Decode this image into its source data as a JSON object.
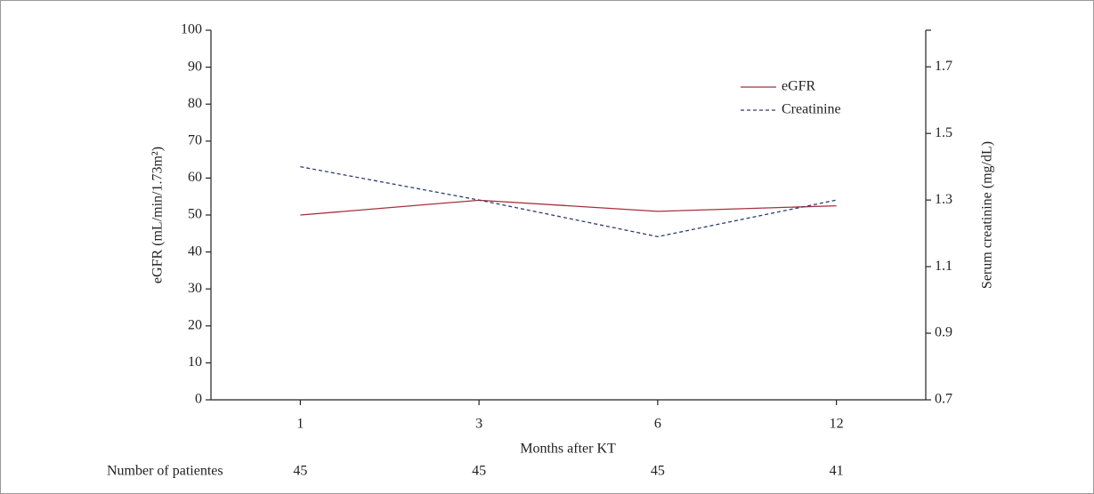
{
  "chart_data": {
    "type": "line",
    "x_label": "Months after KT",
    "y_label": "eGFR (mL/min/1.73m²)",
    "y2_label": "Serum creatinine (mg/dL)",
    "categories": [
      "1",
      "3",
      "6",
      "12"
    ],
    "series": [
      {
        "name": "eGFR",
        "color": "#a3313d",
        "values": [
          50,
          54,
          51,
          52.5
        ]
      },
      {
        "name": "Creatinine",
        "color": "#2e3b6e",
        "axis": "y2",
        "dashed": true,
        "values": [
          1.4,
          1.3,
          1.19,
          1.3
        ]
      }
    ],
    "ylim": [
      0,
      100
    ],
    "yticks": [
      0,
      10,
      20,
      30,
      40,
      50,
      60,
      70,
      80,
      90,
      100
    ],
    "y2lim": [
      0.7,
      1.81
    ],
    "y2ticks": [
      0.7,
      0.9,
      1.1,
      1.3,
      1.5,
      1.7
    ],
    "legend": "upper-right",
    "patients": {
      "label": "Number of patientes",
      "values": [
        45,
        45,
        45,
        41
      ]
    }
  }
}
